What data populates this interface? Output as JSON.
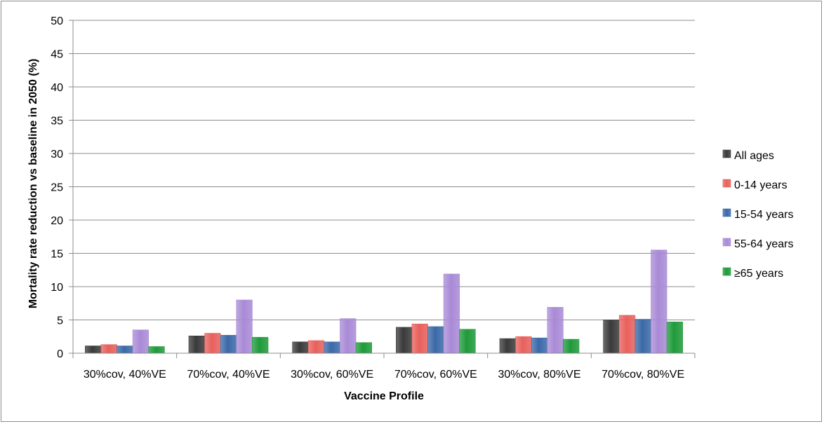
{
  "chart_data": {
    "type": "bar",
    "title": "",
    "xlabel": "Vaccine Profile",
    "ylabel": "Mortality rate reduction vs baseline in 2050 (%)",
    "ylim": [
      0,
      50
    ],
    "yticks": [
      0,
      5,
      10,
      15,
      20,
      25,
      30,
      35,
      40,
      45,
      50
    ],
    "grid": true,
    "legend_position": "right",
    "categories": [
      "30%cov, 40%VE",
      "70%cov, 40%VE",
      "30%cov, 60%VE",
      "70%cov, 60%VE",
      "30%cov, 80%VE",
      "70%cov, 80%VE"
    ],
    "series": [
      {
        "name": "All ages",
        "color": "#3a3a3a",
        "values": [
          1.1,
          2.6,
          1.7,
          3.9,
          2.2,
          5.0
        ]
      },
      {
        "name": "0-14 years",
        "color": "#e8605c",
        "values": [
          1.3,
          3.0,
          1.9,
          4.4,
          2.5,
          5.7
        ]
      },
      {
        "name": "15-54 years",
        "color": "#3b69a8",
        "values": [
          1.1,
          2.7,
          1.7,
          4.0,
          2.3,
          5.1
        ]
      },
      {
        "name": "55-64 years",
        "color": "#a98ad6",
        "values": [
          3.5,
          8.0,
          5.2,
          11.9,
          6.9,
          15.5
        ]
      },
      {
        "name": "≥65 years",
        "color": "#1f9a3a",
        "values": [
          1.0,
          2.4,
          1.6,
          3.6,
          2.1,
          4.7
        ]
      }
    ]
  }
}
